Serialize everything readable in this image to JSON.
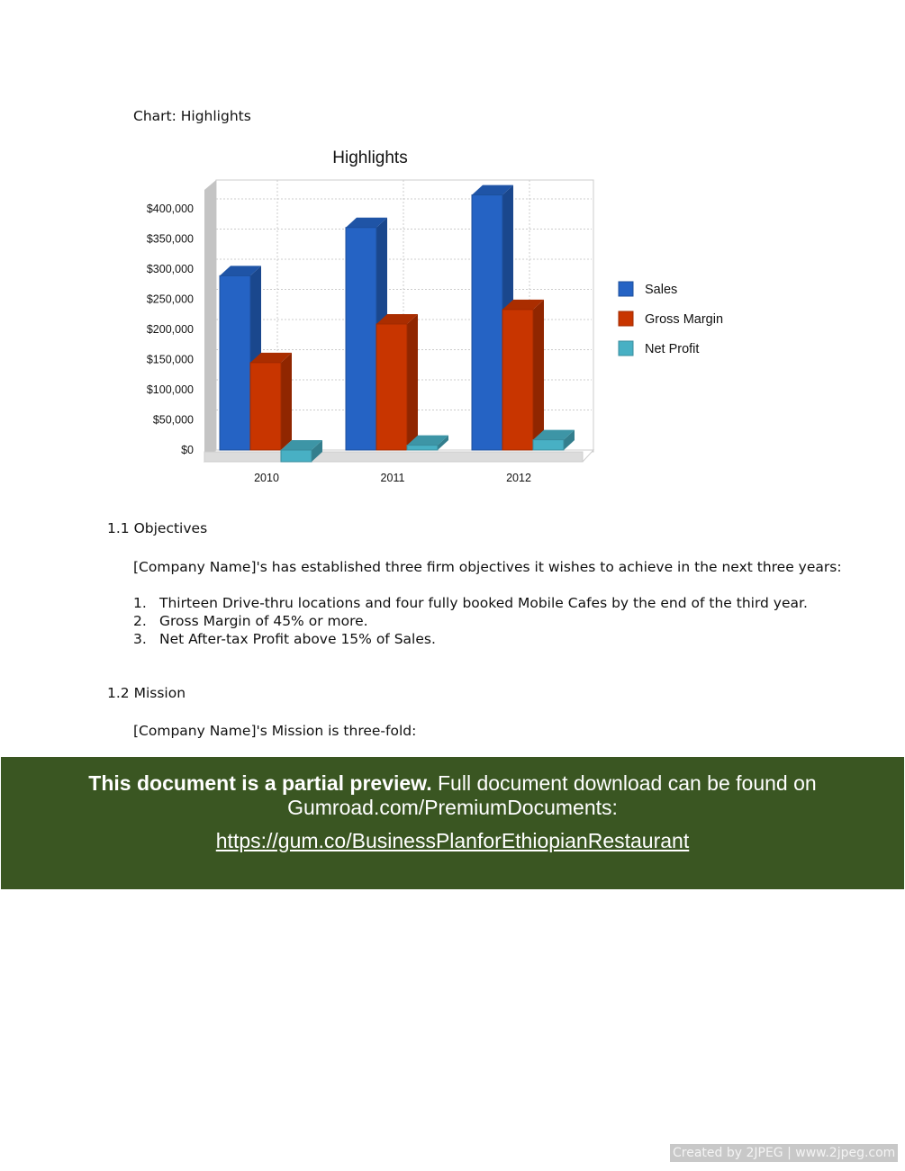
{
  "caption": "Chart: Highlights",
  "chart_data": {
    "type": "bar",
    "title": "Highlights",
    "categories": [
      "2010",
      "2011",
      "2012"
    ],
    "series": [
      {
        "name": "Sales",
        "values": [
          289000,
          369000,
          423000
        ],
        "color": "#2563c4"
      },
      {
        "name": "Gross Margin",
        "values": [
          145000,
          209000,
          233000
        ],
        "color": "#c83500"
      },
      {
        "name": "Net Profit",
        "values": [
          -17000,
          8000,
          17000
        ],
        "color": "#48b0c4"
      }
    ],
    "yticks": [
      "$0",
      "$50,000",
      "$100,000",
      "$150,000",
      "$200,000",
      "$250,000",
      "$300,000",
      "$350,000",
      "$400,000"
    ],
    "ylim": [
      0,
      400000
    ],
    "grid": true,
    "legend": "right",
    "style": "3d"
  },
  "sections": {
    "objectives": {
      "heading": "1.1 Objectives",
      "intro": "[Company Name]'s has established three firm objectives it wishes to achieve in the next three years:",
      "items": [
        {
          "num": "1.",
          "text": "Thirteen Drive-thru locations and four fully booked Mobile Cafes by the end of the third year."
        },
        {
          "num": "2.",
          "text": "Gross Margin of 45% or more."
        },
        {
          "num": "3.",
          "text": "Net After-tax Profit above 15% of Sales."
        }
      ]
    },
    "mission": {
      "heading": "1.2 Mission",
      "text": "[Company Name]'s Mission is three-fold:"
    }
  },
  "banner": {
    "bold": "This document is a partial preview.",
    "rest": " Full document download can be found on",
    "line2": "Gumroad.com/PremiumDocuments:",
    "link": "https://gum.co/BusinessPlanforEthiopianRestaurant",
    "bg_color": "#3a5622"
  },
  "footer": "Created by 2JPEG | www.2jpeg.com"
}
